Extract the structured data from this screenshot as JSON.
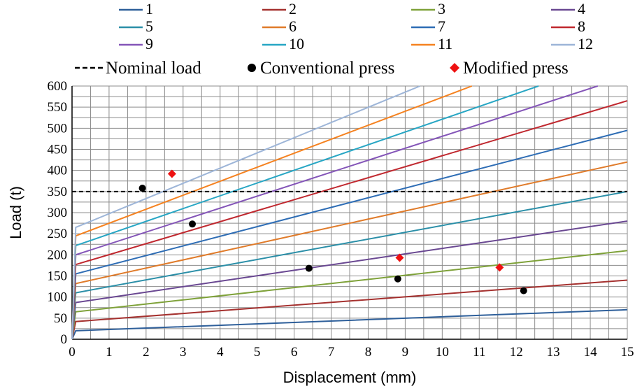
{
  "chart_data": {
    "type": "line",
    "title": "",
    "xlabel": "Displacement (mm)",
    "ylabel": "Load (t)",
    "xlim": [
      0,
      15
    ],
    "ylim": [
      0,
      600
    ],
    "x_ticks": [
      0,
      1,
      2,
      3,
      4,
      5,
      6,
      7,
      8,
      9,
      10,
      11,
      12,
      13,
      14,
      15
    ],
    "y_ticks": [
      0,
      50,
      100,
      150,
      200,
      250,
      300,
      350,
      400,
      450,
      500,
      550,
      600
    ],
    "grid": true,
    "legend_position": "top",
    "reference_line": {
      "name": "Nominal load",
      "y": 350,
      "style": "dashed",
      "color": "#000000"
    },
    "series": [
      {
        "name": "1",
        "color": "#2e5f9a",
        "x": [
          0,
          0.1,
          15
        ],
        "y": [
          0,
          20,
          70
        ]
      },
      {
        "name": "2",
        "color": "#a5312f",
        "x": [
          0,
          0.1,
          15
        ],
        "y": [
          0,
          42,
          140
        ]
      },
      {
        "name": "3",
        "color": "#7fa23a",
        "x": [
          0,
          0.1,
          15
        ],
        "y": [
          0,
          65,
          210
        ]
      },
      {
        "name": "4",
        "color": "#6a4892",
        "x": [
          0,
          0.1,
          15
        ],
        "y": [
          0,
          87,
          280
        ]
      },
      {
        "name": "5",
        "color": "#2b8fa8",
        "x": [
          0,
          0.1,
          15
        ],
        "y": [
          0,
          110,
          350
        ]
      },
      {
        "name": "6",
        "color": "#e07b2a",
        "x": [
          0,
          0.1,
          15
        ],
        "y": [
          0,
          132,
          420
        ]
      },
      {
        "name": "7",
        "color": "#2e6db5",
        "x": [
          0,
          0.1,
          15
        ],
        "y": [
          0,
          155,
          495
        ]
      },
      {
        "name": "8",
        "color": "#c0282f",
        "x": [
          0,
          0.1,
          15
        ],
        "y": [
          0,
          177,
          565
        ]
      },
      {
        "name": "9",
        "color": "#8455b8",
        "x": [
          0,
          0.1,
          14.2
        ],
        "y": [
          0,
          200,
          600
        ]
      },
      {
        "name": "10",
        "color": "#27a6c4",
        "x": [
          0,
          0.1,
          12.6
        ],
        "y": [
          0,
          222,
          600
        ]
      },
      {
        "name": "11",
        "color": "#f58220",
        "x": [
          0,
          0.1,
          10.8
        ],
        "y": [
          0,
          245,
          600
        ]
      },
      {
        "name": "12",
        "color": "#9db5d8",
        "x": [
          0,
          0.1,
          9.4
        ],
        "y": [
          0,
          265,
          600
        ]
      }
    ],
    "markers": [
      {
        "name": "Conventional press",
        "shape": "circle",
        "color": "#000000",
        "points": [
          {
            "x": 1.9,
            "y": 358
          },
          {
            "x": 3.25,
            "y": 273
          },
          {
            "x": 6.4,
            "y": 168
          },
          {
            "x": 8.8,
            "y": 143
          },
          {
            "x": 12.2,
            "y": 115
          }
        ]
      },
      {
        "name": "Modified press",
        "shape": "diamond",
        "color": "#ee1111",
        "points": [
          {
            "x": 2.7,
            "y": 392
          },
          {
            "x": 8.85,
            "y": 193
          },
          {
            "x": 11.55,
            "y": 170
          }
        ]
      }
    ]
  }
}
